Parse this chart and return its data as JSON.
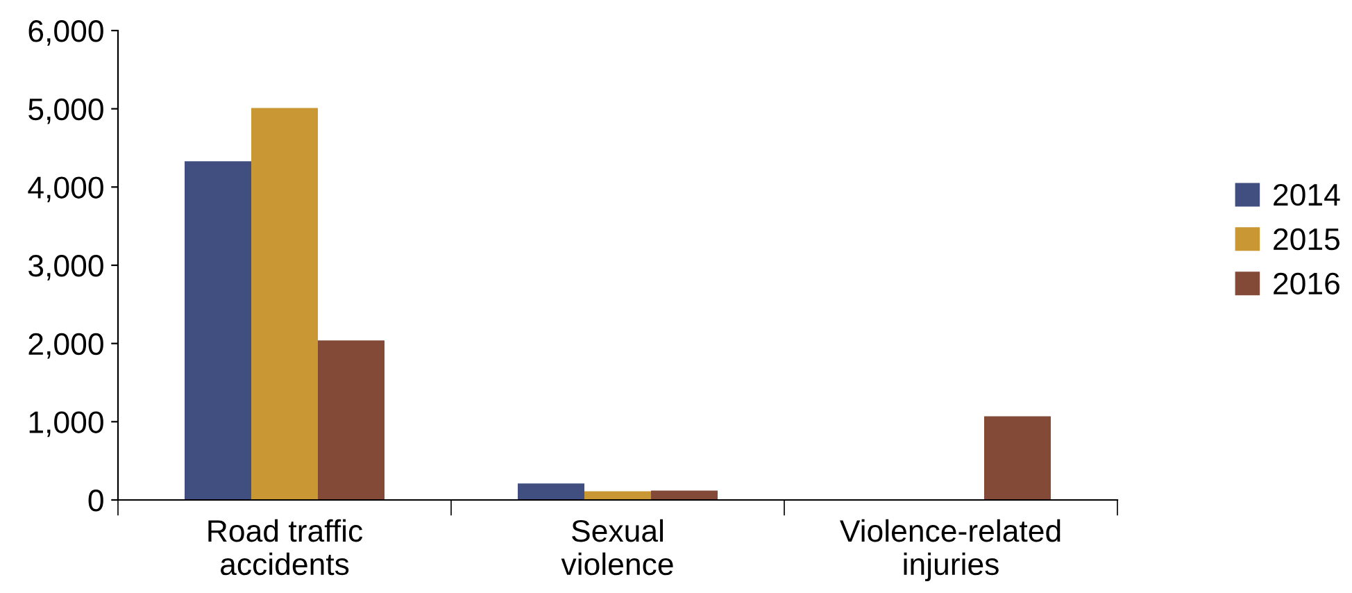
{
  "chart_data": {
    "type": "bar",
    "categories": [
      "Road traffic\naccidents",
      "Sexual\nviolence",
      "Violence-related\ninjuries"
    ],
    "series": [
      {
        "name": "2014",
        "color": "#414f80",
        "values": [
          4330,
          210,
          null
        ]
      },
      {
        "name": "2015",
        "color": "#c99834",
        "values": [
          5010,
          110,
          null
        ]
      },
      {
        "name": "2016",
        "color": "#844a38",
        "values": [
          2040,
          120,
          1070
        ]
      }
    ],
    "ylim": [
      0,
      6000
    ],
    "yticks": [
      {
        "value": 0,
        "label": "0"
      },
      {
        "value": 1000,
        "label": "1,000"
      },
      {
        "value": 2000,
        "label": "2,000"
      },
      {
        "value": 3000,
        "label": "3,000"
      },
      {
        "value": 4000,
        "label": "4,000"
      },
      {
        "value": 5000,
        "label": "5,000"
      },
      {
        "value": 6000,
        "label": "6,000"
      }
    ],
    "grid": false,
    "legend": "right"
  }
}
